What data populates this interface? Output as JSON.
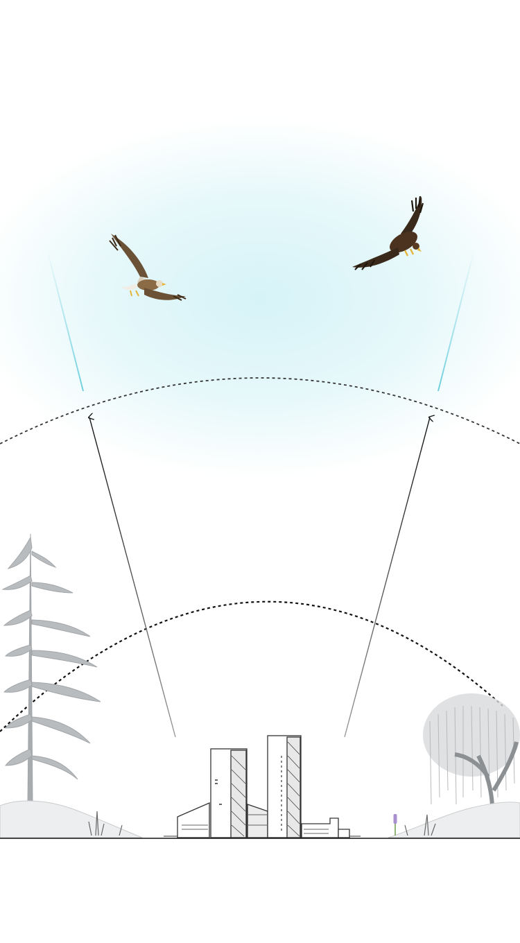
{
  "scene": {
    "sky_color": "#d8f4f8",
    "line_color": "#111111",
    "sketch_color": "#333333",
    "tree_color": "#b9bcbf",
    "beam_color": "#6fd0de"
  },
  "elements": {
    "eagle_left": {
      "icon": "eagle-soaring-icon"
    },
    "eagle_right": {
      "icon": "eagle-diving-icon"
    },
    "tree_left": {
      "icon": "pine-tree-icon"
    },
    "tree_right": {
      "icon": "willow-tree-icon"
    },
    "buildings": {
      "icon": "building-towers-icon"
    }
  }
}
